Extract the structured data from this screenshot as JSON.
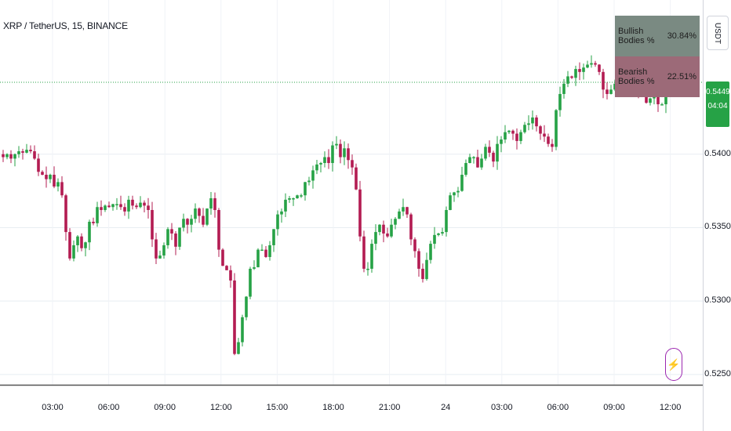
{
  "header": {
    "title": "XRP / TetherUS, 15, BINANCE",
    "currency": "USDT"
  },
  "price_badge": {
    "price": "0.5449",
    "countdown": "04:04"
  },
  "stats": {
    "bullish_label": "Bullish Bodies %",
    "bullish_value": "30.84%",
    "bearish_label": "Bearish Bodies %",
    "bearish_value": "22.51%"
  },
  "colors": {
    "up": "#26a246",
    "down": "#b31c52",
    "grid": "#e8edf2",
    "price_line": "#26a246"
  },
  "chart_data": {
    "type": "candlestick",
    "title": "XRP / TetherUS, 15, BINANCE",
    "ylim": [
      0.5243,
      0.5505
    ],
    "y_ticks": [
      "0.5250",
      "0.5300",
      "0.5350",
      "0.5400"
    ],
    "x_ticks": [
      "03:00",
      "06:00",
      "09:00",
      "12:00",
      "15:00",
      "18:00",
      "21:00",
      "24",
      "03:00",
      "06:00",
      "09:00",
      "12:00"
    ],
    "last_price": 0.5449,
    "closes": [
      0.5398,
      0.54,
      0.5397,
      0.54,
      0.5402,
      0.5401,
      0.5403,
      0.5402,
      0.5397,
      0.5388,
      0.5386,
      0.5383,
      0.5386,
      0.5378,
      0.5381,
      0.5372,
      0.5347,
      0.5329,
      0.5338,
      0.5344,
      0.5336,
      0.534,
      0.5354,
      0.5353,
      0.5364,
      0.5362,
      0.5365,
      0.5364,
      0.5366,
      0.5366,
      0.5364,
      0.5361,
      0.5369,
      0.5365,
      0.5364,
      0.5367,
      0.5365,
      0.5362,
      0.5342,
      0.5329,
      0.5331,
      0.5338,
      0.5349,
      0.5346,
      0.5337,
      0.535,
      0.5356,
      0.5352,
      0.5356,
      0.5363,
      0.5358,
      0.5352,
      0.5363,
      0.537,
      0.5362,
      0.5335,
      0.5324,
      0.5321,
      0.5314,
      0.5264,
      0.5272,
      0.5289,
      0.5303,
      0.5322,
      0.5323,
      0.5335,
      0.5335,
      0.533,
      0.5338,
      0.5349,
      0.5359,
      0.5361,
      0.5369,
      0.537,
      0.537,
      0.5372,
      0.5372,
      0.5381,
      0.5382,
      0.5389,
      0.5393,
      0.5394,
      0.5398,
      0.5394,
      0.5406,
      0.5407,
      0.5398,
      0.5404,
      0.5396,
      0.5391,
      0.5376,
      0.5344,
      0.5322,
      0.5322,
      0.5339,
      0.5347,
      0.5352,
      0.5346,
      0.5344,
      0.5352,
      0.5356,
      0.5361,
      0.5364,
      0.5359,
      0.5342,
      0.5334,
      0.5322,
      0.5315,
      0.5328,
      0.5339,
      0.5345,
      0.5346,
      0.5347,
      0.5362,
      0.5372,
      0.5374,
      0.5375,
      0.5386,
      0.5394,
      0.5398,
      0.5398,
      0.5391,
      0.5397,
      0.5405,
      0.5401,
      0.5395,
      0.5407,
      0.541,
      0.5415,
      0.5416,
      0.5414,
      0.5409,
      0.5415,
      0.542,
      0.5421,
      0.5425,
      0.5419,
      0.5414,
      0.5412,
      0.5407,
      0.5405,
      0.543,
      0.5441,
      0.5448,
      0.5453,
      0.5452,
      0.5458,
      0.5456,
      0.5459,
      0.5461,
      0.5462,
      0.5461,
      0.5456,
      0.5444,
      0.5441,
      0.5444,
      0.5448,
      0.5452,
      0.5449,
      0.5451,
      0.5447,
      0.5444,
      0.5441,
      0.5442,
      0.5435,
      0.5438,
      0.5439,
      0.5434,
      0.5434,
      0.5445,
      0.545,
      0.5445,
      0.5448,
      0.5449
    ]
  }
}
